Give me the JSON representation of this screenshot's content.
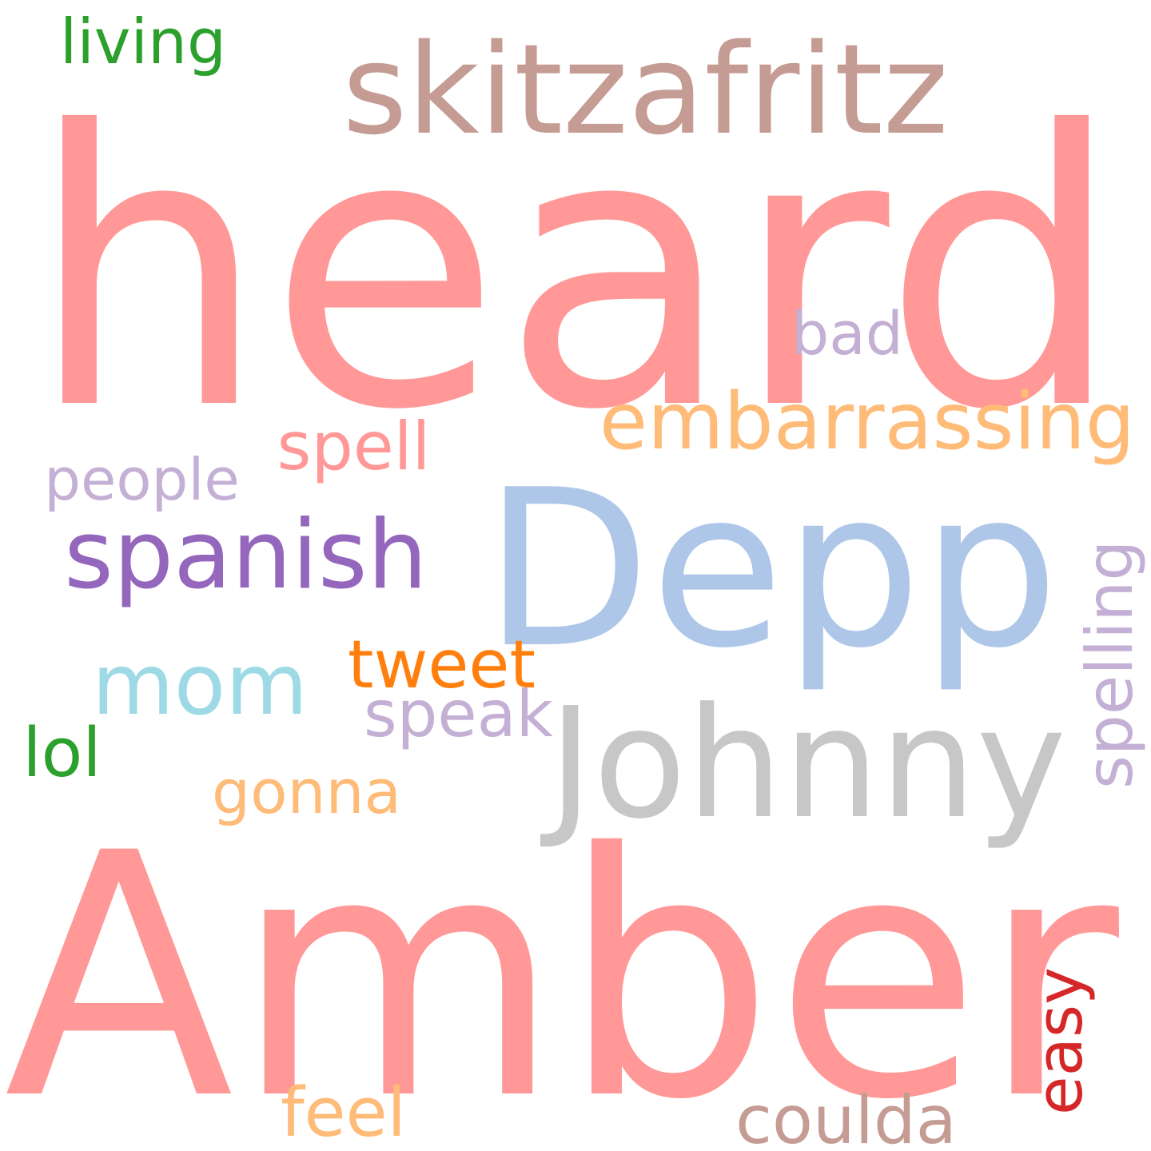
{
  "words": [
    {
      "text": "heard",
      "color": "#ff9896"
    },
    {
      "text": "Amber",
      "color": "#ff9896"
    },
    {
      "text": "Depp",
      "color": "#aec7e8"
    },
    {
      "text": "skitzafritz",
      "color": "#c49c94"
    },
    {
      "text": "Johnny",
      "color": "#c7c7c7"
    },
    {
      "text": "spanish",
      "color": "#9467bd"
    },
    {
      "text": "mom",
      "color": "#9edae5"
    },
    {
      "text": "embarrassing",
      "color": "#ffbb78"
    },
    {
      "text": "living",
      "color": "#2ca02c"
    },
    {
      "text": "bad",
      "color": "#c5b0d5"
    },
    {
      "text": "spell",
      "color": "#ff9896"
    },
    {
      "text": "people",
      "color": "#c5b0d5"
    },
    {
      "text": "tweet",
      "color": "#ff7f0e"
    },
    {
      "text": "speak",
      "color": "#c5b0d5"
    },
    {
      "text": "spelling",
      "color": "#c5b0d5"
    },
    {
      "text": "lol",
      "color": "#2ca02c"
    },
    {
      "text": "gonna",
      "color": "#ffbb78"
    },
    {
      "text": "easy",
      "color": "#d62728"
    },
    {
      "text": "feel",
      "color": "#ffbb78"
    },
    {
      "text": "coulda",
      "color": "#c49c94"
    }
  ]
}
